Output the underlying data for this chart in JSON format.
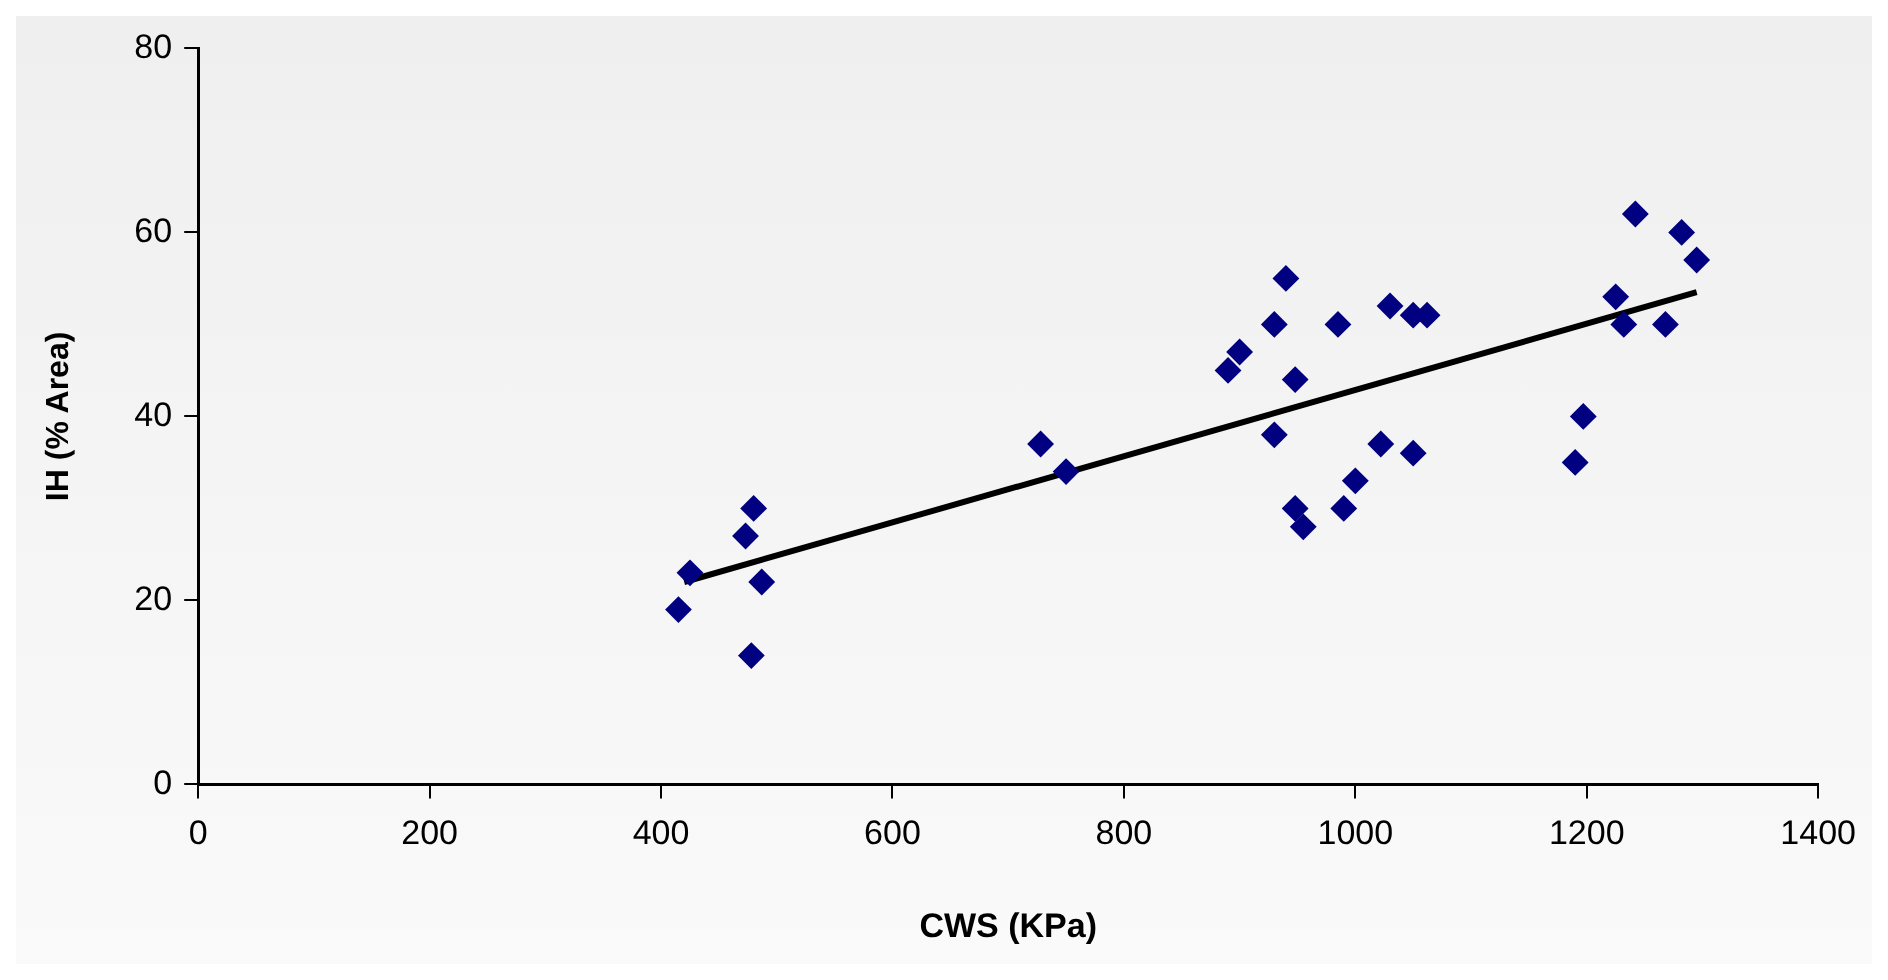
{
  "chart_data": {
    "type": "scatter",
    "xlabel": "CWS (KPa)",
    "ylabel": "IH (% Area)",
    "xlim": [
      0,
      1400
    ],
    "xticks": [
      0,
      200,
      400,
      600,
      800,
      1000,
      1200,
      1400
    ],
    "ylim": [
      0,
      80
    ],
    "yticks": [
      0,
      20,
      40,
      60,
      80
    ],
    "grid": false,
    "legend": false,
    "marker": "diamond",
    "series": [
      {
        "type": "scatter",
        "color": "#000080",
        "x": [
          415,
          425,
          473,
          478,
          480,
          487,
          728,
          750,
          890,
          900,
          930,
          930,
          940,
          948,
          948,
          955,
          985,
          990,
          1000,
          1022,
          1030,
          1050,
          1050,
          1062,
          1190,
          1197,
          1225,
          1232,
          1242,
          1268,
          1282,
          1295
        ],
        "values": [
          19,
          23,
          27,
          14,
          30,
          22,
          37,
          34,
          45,
          47,
          50,
          38,
          55,
          44,
          30,
          28,
          50,
          30,
          33,
          37,
          52,
          51,
          36,
          51,
          35,
          40,
          53,
          50,
          62,
          50,
          60,
          57
        ]
      },
      {
        "type": "line",
        "color": "#000000",
        "x": [
          420,
          1295
        ],
        "values": [
          22,
          53.5
        ],
        "marker": "none",
        "line_style": "solid"
      }
    ]
  }
}
